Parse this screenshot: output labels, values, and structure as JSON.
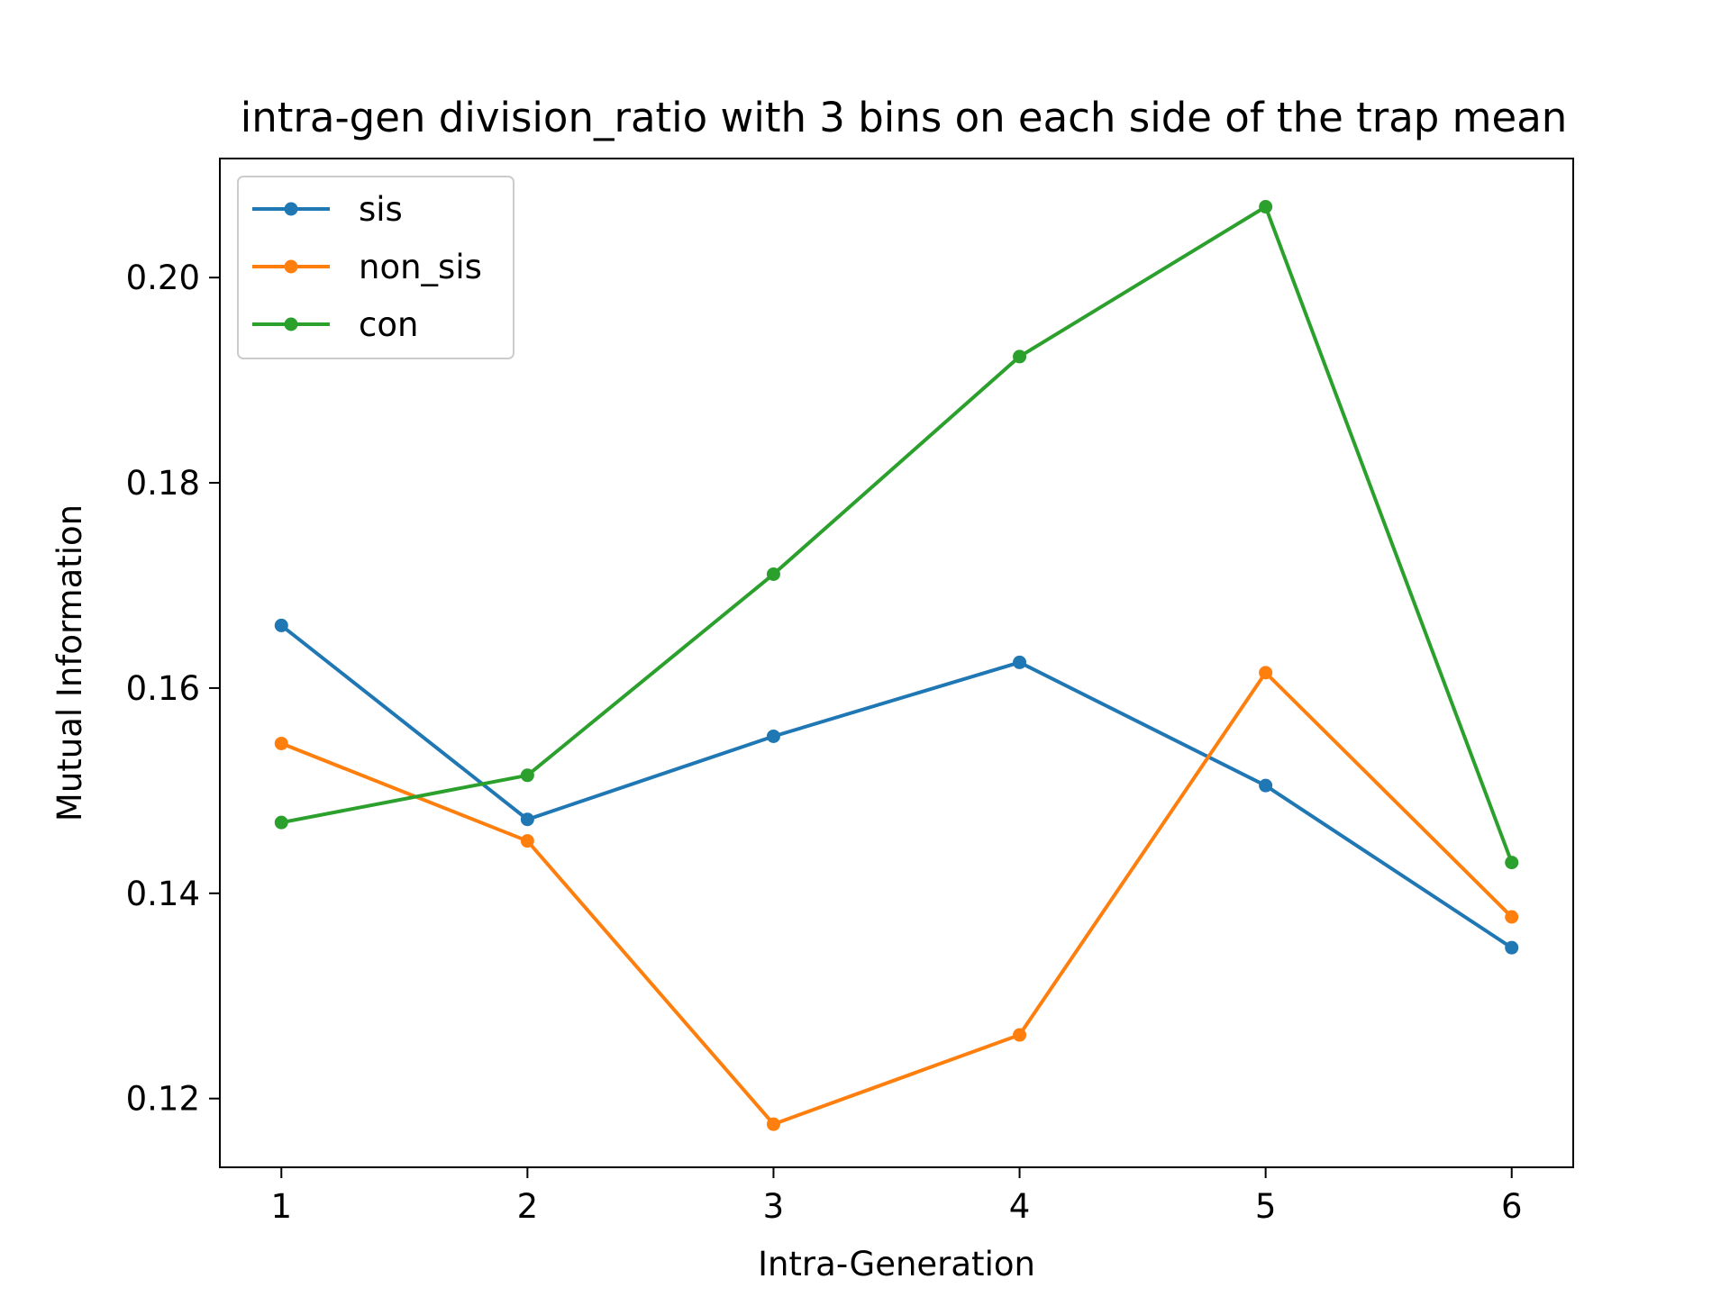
{
  "chart_data": {
    "type": "line",
    "title": "intra-gen division_ratio with 3 bins on each side of the trap mean",
    "xlabel": "Intra-Generation",
    "ylabel": "Mutual Information",
    "x": [
      1,
      2,
      3,
      4,
      5,
      6
    ],
    "xticks": [
      "1",
      "2",
      "3",
      "4",
      "5",
      "6"
    ],
    "yticks": [
      "0.12",
      "0.14",
      "0.16",
      "0.18",
      "0.20"
    ],
    "ytick_values": [
      0.12,
      0.14,
      0.16,
      0.18,
      0.2
    ],
    "xlim": [
      0.75,
      6.25
    ],
    "ylim": [
      0.1133,
      0.2116
    ],
    "grid": false,
    "legend_position": "top-left",
    "series": [
      {
        "name": "sis",
        "color": "#1f77b4",
        "values": [
          0.1661,
          0.1472,
          0.1553,
          0.1625,
          0.1505,
          0.1347
        ]
      },
      {
        "name": "non_sis",
        "color": "#ff7f0e",
        "values": [
          0.1546,
          0.1451,
          0.1175,
          0.1262,
          0.1615,
          0.1377
        ]
      },
      {
        "name": "con",
        "color": "#2ca02c",
        "values": [
          0.1469,
          0.1515,
          0.1711,
          0.1923,
          0.2069,
          0.143
        ]
      }
    ]
  }
}
